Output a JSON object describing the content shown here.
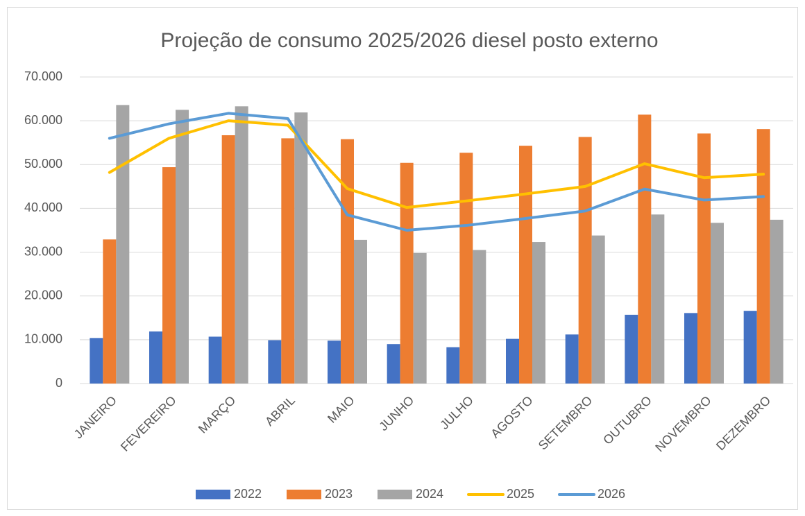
{
  "chart_data": {
    "type": "combo",
    "title": "Projeção de consumo 2025/2026 diesel posto externo",
    "categories": [
      "JANEIRO",
      "FEVEREIRO",
      "MARÇO",
      "ABRIL",
      "MAIO",
      "JUNHO",
      "JULHO",
      "AGOSTO",
      "SETEMBRO",
      "OUTUBRO",
      "NOVEMBRO",
      "DEZEMBRO"
    ],
    "series": [
      {
        "name": "2022",
        "type": "bar",
        "color": "#4472c4",
        "values": [
          10400,
          11900,
          10700,
          9900,
          9800,
          9000,
          8300,
          10200,
          11200,
          15700,
          16100,
          16600
        ]
      },
      {
        "name": "2023",
        "type": "bar",
        "color": "#ed7d31",
        "values": [
          32900,
          49400,
          56700,
          56000,
          55800,
          50400,
          52700,
          54300,
          56300,
          61400,
          57100,
          58100
        ]
      },
      {
        "name": "2024",
        "type": "bar",
        "color": "#a5a5a5",
        "values": [
          63600,
          62500,
          63300,
          61900,
          32800,
          29800,
          30500,
          32300,
          33800,
          38600,
          36700,
          37400
        ]
      },
      {
        "name": "2025",
        "type": "line",
        "color": "#ffc000",
        "values": [
          48200,
          56000,
          60000,
          59000,
          44500,
          40200,
          41700,
          43300,
          45000,
          50200,
          47000,
          47800
        ]
      },
      {
        "name": "2026",
        "type": "line",
        "color": "#5b9bd5",
        "values": [
          56000,
          59300,
          61700,
          60500,
          38500,
          35000,
          36100,
          37700,
          39400,
          44400,
          41900,
          42700
        ]
      }
    ],
    "ylim": [
      0,
      70000
    ],
    "yticks": [
      0,
      {
        "value": 10000,
        "label": "10.000"
      },
      {
        "value": 20000,
        "label": "20.000"
      },
      {
        "value": 30000,
        "label": "30.000"
      },
      {
        "value": 40000,
        "label": "40.000"
      },
      {
        "value": 50000,
        "label": "50.000"
      },
      {
        "value": 60000,
        "label": "60.000"
      },
      {
        "value": 70000,
        "label": "70.000"
      }
    ],
    "grid": true,
    "legend": "bottom"
  }
}
